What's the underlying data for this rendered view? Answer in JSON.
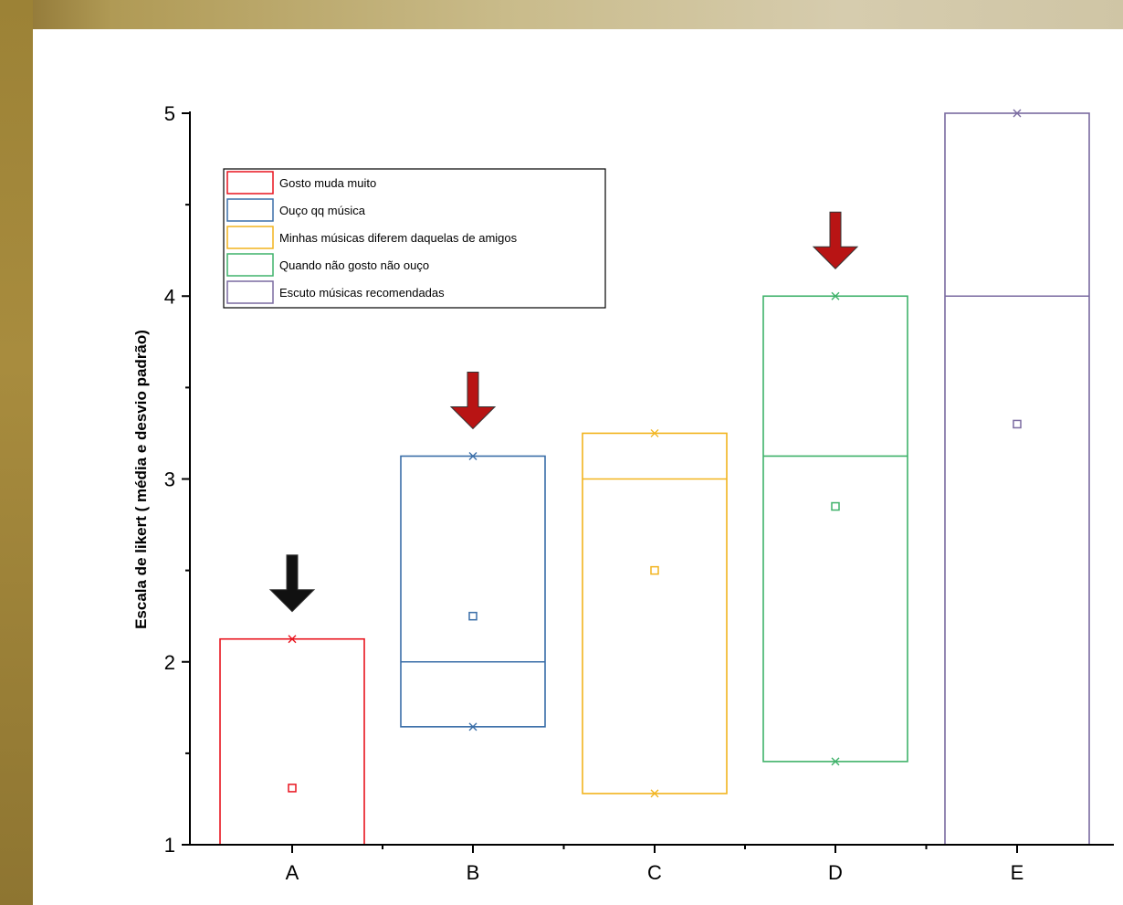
{
  "chart_data": {
    "type": "box",
    "categories": [
      "A",
      "B",
      "C",
      "D",
      "E"
    ],
    "ylabel": "Escala de likert ( média e desvio padrão)",
    "xlabel": "",
    "ylim": [
      1,
      5
    ],
    "yticks": [
      1,
      2,
      3,
      4,
      5
    ],
    "legend_position": "top-left",
    "series": [
      {
        "name": "Gosto muda muito",
        "color": "#e8141e",
        "box_low": 1.0,
        "box_high": 2.125,
        "median": 1.0,
        "mean": 1.31,
        "x_top": 2.125,
        "x_bottom": null,
        "arrow": "black"
      },
      {
        "name": "Ouço qq música",
        "color": "#3a6ea8",
        "box_low": 1.645,
        "box_high": 3.125,
        "median": 2.0,
        "mean": 2.25,
        "x_top": 3.125,
        "x_bottom": 1.645,
        "arrow": "red"
      },
      {
        "name": "Minhas músicas diferem daquelas de amigos",
        "color": "#f2b41e",
        "box_low": 1.28,
        "box_high": 3.25,
        "median": 3.0,
        "mean": 2.5,
        "x_top": 3.25,
        "x_bottom": 1.28,
        "arrow": null
      },
      {
        "name": "Quando não gosto não ouço",
        "color": "#3fb26a",
        "box_low": 1.455,
        "box_high": 4.0,
        "median": 3.125,
        "mean": 2.85,
        "x_top": 4.0,
        "x_bottom": 1.455,
        "arrow": "red"
      },
      {
        "name": "Escuto músicas recomendadas",
        "color": "#7a6aa0",
        "box_low": 1.0,
        "box_high": 5.0,
        "median": 4.0,
        "mean": 3.3,
        "x_top": 5.0,
        "x_bottom": null,
        "arrow": null
      }
    ],
    "arrow_colors": {
      "black": "#111111",
      "red": "#b81414"
    }
  }
}
